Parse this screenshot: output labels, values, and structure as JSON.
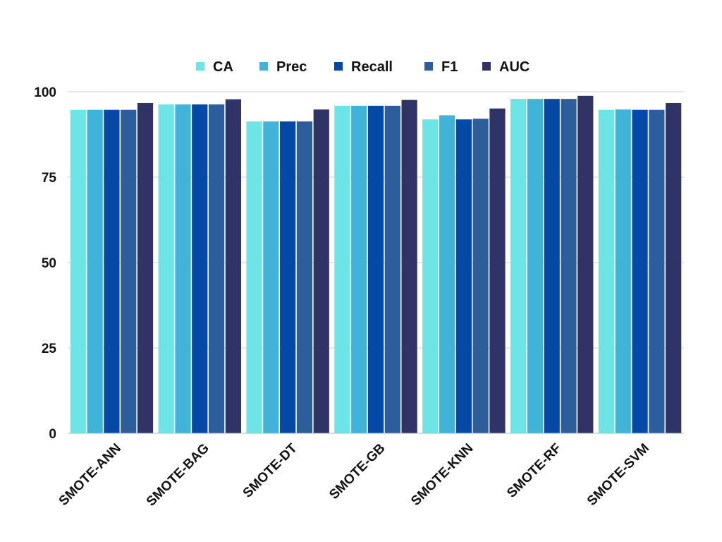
{
  "chart_data": {
    "type": "bar",
    "title": "",
    "xlabel": "",
    "ylabel": "",
    "ylim": [
      0,
      100
    ],
    "yticks": [
      0,
      25,
      50,
      75,
      100
    ],
    "grid": true,
    "legend_position": "top-center",
    "categories": [
      "SMOTE-ANN",
      "SMOTE-BAG",
      "SMOTE-DT",
      "SMOTE-GB",
      "SMOTE-KNN",
      "SMOTE-RF",
      "SMOTE-SVM"
    ],
    "series": [
      {
        "name": "CA",
        "color": "#6de4e6",
        "values": [
          94.7,
          96.3,
          91.3,
          95.9,
          91.9,
          97.9,
          94.7
        ]
      },
      {
        "name": "Prec",
        "color": "#40b4d8",
        "values": [
          94.7,
          96.3,
          91.3,
          95.9,
          93.1,
          97.9,
          94.8
        ]
      },
      {
        "name": "Recall",
        "color": "#0449a6",
        "values": [
          94.7,
          96.3,
          91.3,
          95.9,
          91.9,
          97.9,
          94.7
        ]
      },
      {
        "name": "F1",
        "color": "#2d5e9c",
        "values": [
          94.7,
          96.3,
          91.3,
          95.9,
          92.1,
          97.9,
          94.7
        ]
      },
      {
        "name": "AUC",
        "color": "#2f3366",
        "values": [
          96.7,
          97.8,
          94.8,
          97.6,
          95.1,
          98.8,
          96.7
        ]
      }
    ]
  }
}
